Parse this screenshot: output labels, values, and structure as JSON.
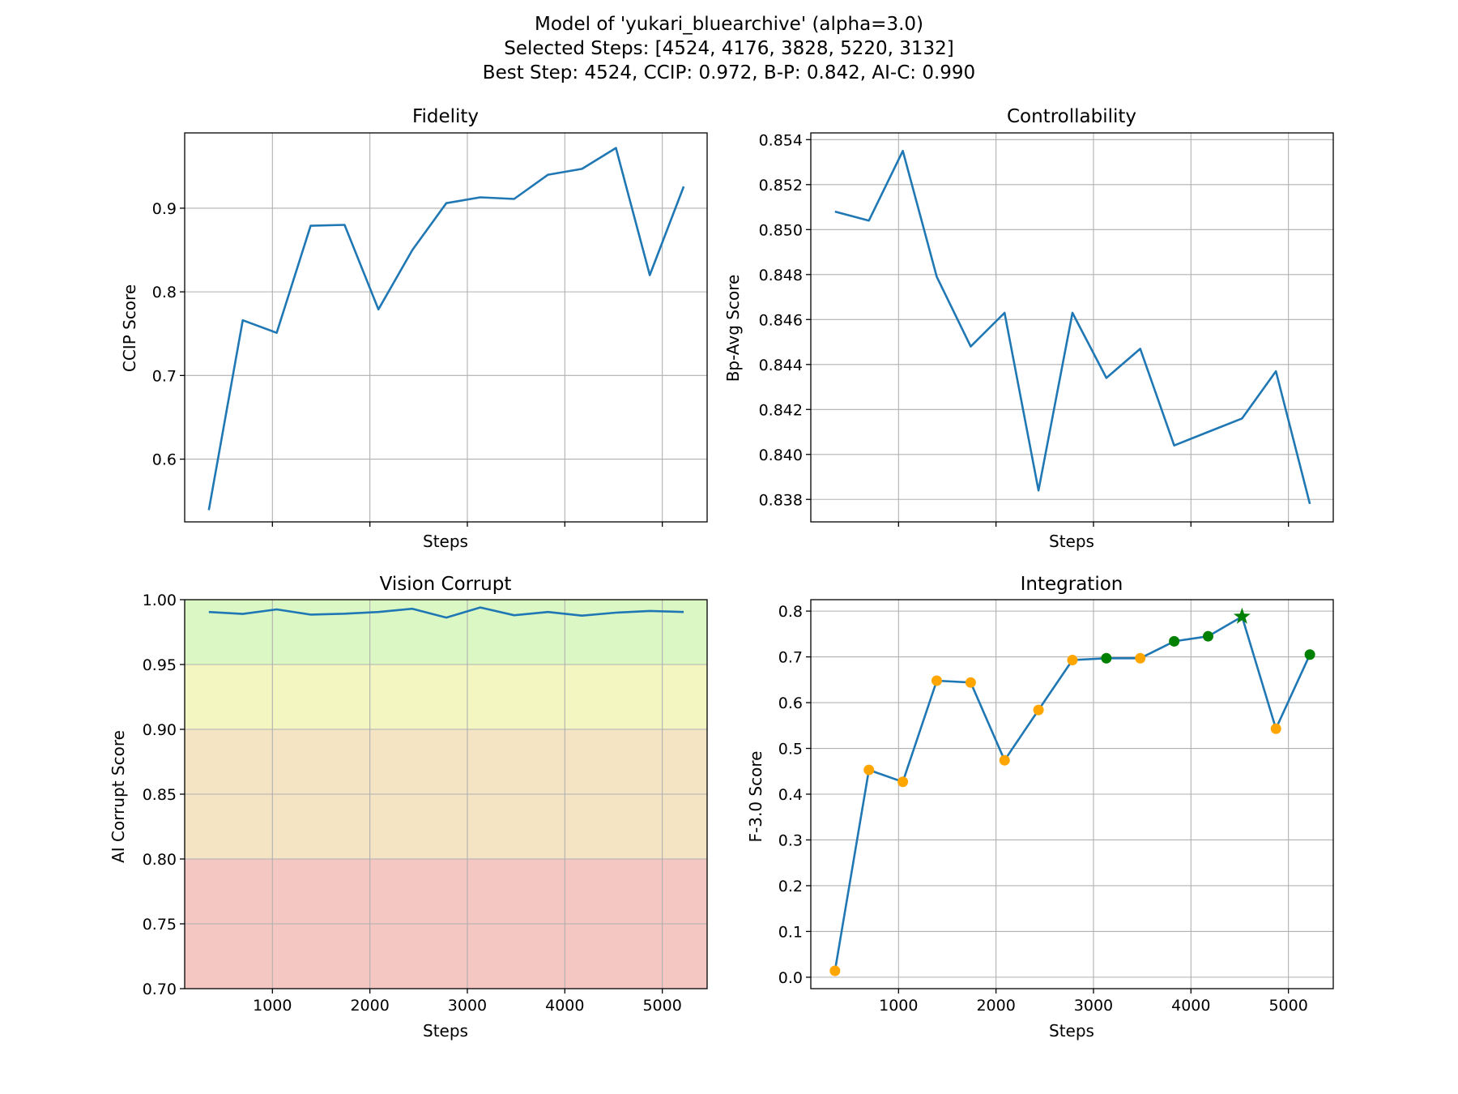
{
  "figure": {
    "title_lines": [
      "Model of 'yukari_bluearchive' (alpha=3.0)",
      "Selected Steps: [4524, 4176, 3828, 5220, 3132]",
      "Best Step: 4524, CCIP: 0.972, B-P: 0.842, AI-C: 0.990"
    ]
  },
  "chart_data": [
    {
      "id": "fidelity",
      "type": "line",
      "title": "Fidelity",
      "xlabel": "Steps",
      "ylabel": "CCIP Score",
      "xlim": [
        100,
        5460
      ],
      "ylim": [
        0.525,
        0.99
      ],
      "xticks": [
        1000,
        2000,
        3000,
        4000,
        5000
      ],
      "show_xtick_labels": false,
      "yticks": [
        0.6,
        0.7,
        0.8,
        0.9
      ],
      "ytick_labels": [
        "0.6",
        "0.7",
        "0.8",
        "0.9"
      ],
      "grid": true,
      "color": "#1f77b4",
      "x": [
        348,
        696,
        1044,
        1392,
        1740,
        2088,
        2436,
        2784,
        3132,
        3480,
        3828,
        4176,
        4524,
        4872,
        5220
      ],
      "y": [
        0.539,
        0.766,
        0.751,
        0.879,
        0.88,
        0.779,
        0.85,
        0.906,
        0.913,
        0.911,
        0.94,
        0.947,
        0.972,
        0.82,
        0.926
      ]
    },
    {
      "id": "controllability",
      "type": "line",
      "title": "Controllability",
      "xlabel": "Steps",
      "ylabel": "Bp-Avg Score",
      "xlim": [
        100,
        5460
      ],
      "ylim": [
        0.837,
        0.8543
      ],
      "xticks": [
        1000,
        2000,
        3000,
        4000,
        5000
      ],
      "show_xtick_labels": false,
      "yticks": [
        0.838,
        0.84,
        0.842,
        0.844,
        0.846,
        0.848,
        0.85,
        0.852,
        0.854
      ],
      "ytick_labels": [
        "0.838",
        "0.840",
        "0.842",
        "0.844",
        "0.846",
        "0.848",
        "0.850",
        "0.852",
        "0.854"
      ],
      "grid": true,
      "color": "#1f77b4",
      "x": [
        348,
        696,
        1044,
        1392,
        1740,
        2088,
        2436,
        2784,
        3132,
        3480,
        3828,
        4176,
        4524,
        4872,
        5220
      ],
      "y": [
        0.8508,
        0.8504,
        0.8535,
        0.8479,
        0.8448,
        0.8463,
        0.8384,
        0.8463,
        0.8434,
        0.8447,
        0.8404,
        0.841,
        0.8416,
        0.8437,
        0.8378
      ]
    },
    {
      "id": "vision_corrupt",
      "type": "line",
      "title": "Vision Corrupt",
      "xlabel": "Steps",
      "ylabel": "AI Corrupt Score",
      "xlim": [
        100,
        5460
      ],
      "ylim": [
        0.7,
        1.0
      ],
      "xticks": [
        1000,
        2000,
        3000,
        4000,
        5000
      ],
      "xtick_labels": [
        "1000",
        "2000",
        "3000",
        "4000",
        "5000"
      ],
      "show_xtick_labels": true,
      "yticks": [
        0.7,
        0.75,
        0.8,
        0.85,
        0.9,
        0.95,
        1.0
      ],
      "ytick_labels": [
        "0.70",
        "0.75",
        "0.80",
        "0.85",
        "0.90",
        "0.95",
        "1.00"
      ],
      "grid": true,
      "color": "#1f77b4",
      "bands": [
        {
          "from": 0.7,
          "to": 0.8,
          "color": "#f5c7c2"
        },
        {
          "from": 0.8,
          "to": 0.9,
          "color": "#f5e4c4"
        },
        {
          "from": 0.9,
          "to": 0.95,
          "color": "#f4f6c2"
        },
        {
          "from": 0.95,
          "to": 1.0,
          "color": "#dbf7c4"
        }
      ],
      "x": [
        348,
        696,
        1044,
        1392,
        1740,
        2088,
        2436,
        2784,
        3132,
        3480,
        3828,
        4176,
        4524,
        4872,
        5220
      ],
      "y": [
        0.9905,
        0.989,
        0.9925,
        0.9885,
        0.9892,
        0.9905,
        0.993,
        0.9862,
        0.994,
        0.988,
        0.9905,
        0.9877,
        0.99,
        0.9913,
        0.9905
      ]
    },
    {
      "id": "integration",
      "type": "line",
      "title": "Integration",
      "xlabel": "Steps",
      "ylabel": "F-3.0 Score",
      "xlim": [
        100,
        5460
      ],
      "ylim": [
        -0.025,
        0.825
      ],
      "xticks": [
        1000,
        2000,
        3000,
        4000,
        5000
      ],
      "xtick_labels": [
        "1000",
        "2000",
        "3000",
        "4000",
        "5000"
      ],
      "show_xtick_labels": true,
      "yticks": [
        0.0,
        0.1,
        0.2,
        0.3,
        0.4,
        0.5,
        0.6,
        0.7,
        0.8
      ],
      "ytick_labels": [
        "0.0",
        "0.1",
        "0.2",
        "0.3",
        "0.4",
        "0.5",
        "0.6",
        "0.7",
        "0.8"
      ],
      "grid": true,
      "color": "#1f77b4",
      "marker_color_default": "#ffa500",
      "marker_color_selected": "#008000",
      "best_marker": "star",
      "x": [
        348,
        696,
        1044,
        1392,
        1740,
        2088,
        2436,
        2784,
        3132,
        3480,
        3828,
        4176,
        4524,
        4872,
        5220
      ],
      "y": [
        0.014,
        0.453,
        0.427,
        0.648,
        0.644,
        0.474,
        0.584,
        0.693,
        0.697,
        0.697,
        0.734,
        0.745,
        0.788,
        0.543,
        0.705
      ],
      "selected_steps": [
        4524,
        4176,
        3828,
        5220,
        3132
      ],
      "best_step": 4524
    }
  ]
}
